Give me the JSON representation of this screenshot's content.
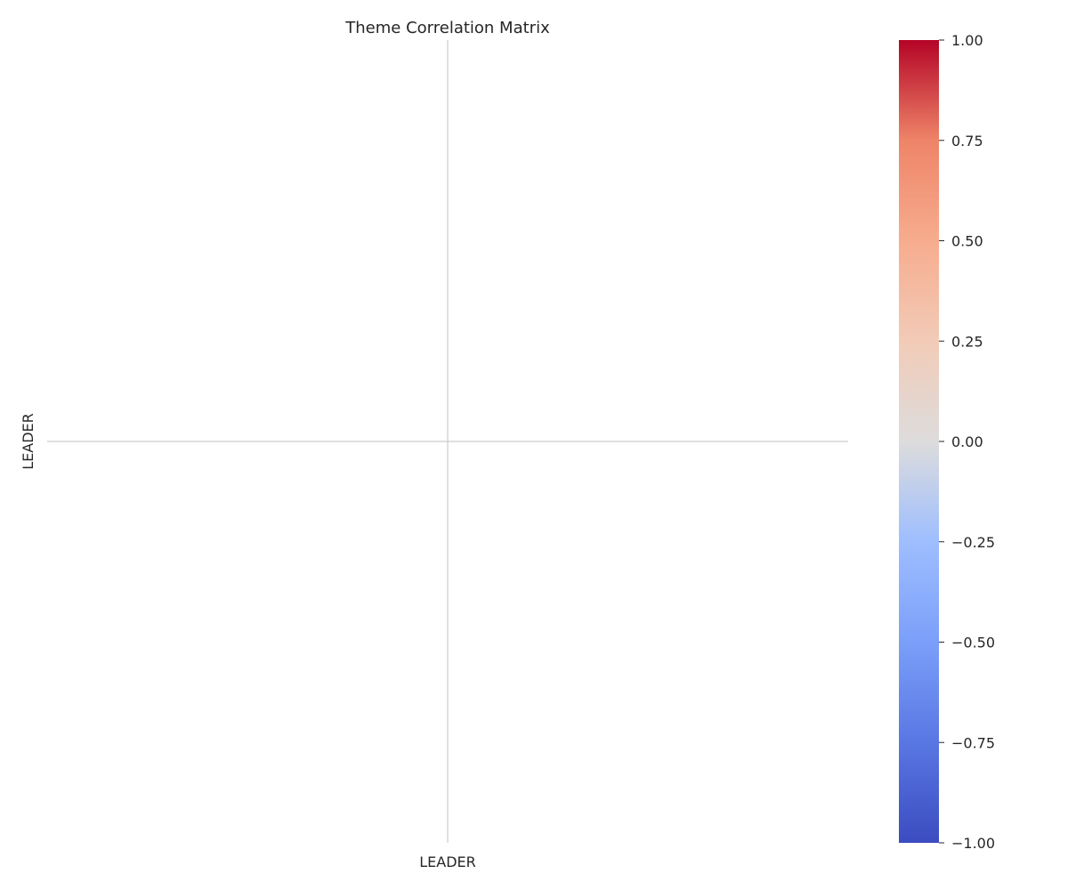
{
  "chart_data": {
    "type": "heatmap",
    "title": "Theme Correlation Matrix",
    "x_categories": [
      "LEADER"
    ],
    "y_categories": [
      "LEADER"
    ],
    "values": [
      [
        null
      ]
    ],
    "grid": true,
    "colorbar": {
      "colormap": "coolwarm",
      "range": [
        -1.0,
        1.0
      ],
      "ticks": [
        1.0,
        0.75,
        0.5,
        0.25,
        0.0,
        -0.25,
        -0.5,
        -0.75,
        -1.0
      ],
      "tick_labels": [
        "1.00",
        "0.75",
        "0.50",
        "0.25",
        "0.00",
        "−0.25",
        "−0.50",
        "−0.75",
        "−1.00"
      ],
      "placement": "right",
      "colors": {
        "low": "#3b4cc0",
        "mid": "#dddddd",
        "high": "#b40426"
      }
    }
  }
}
